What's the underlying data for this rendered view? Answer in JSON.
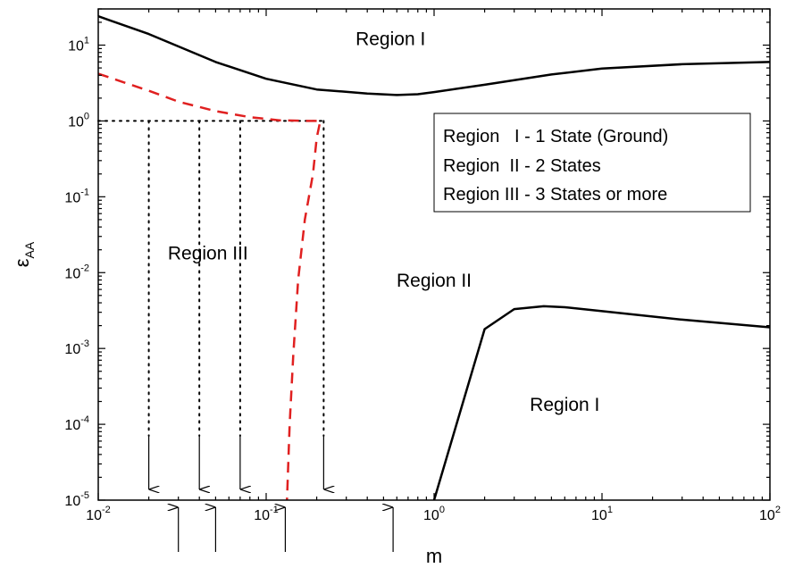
{
  "chart_data": {
    "type": "line",
    "x_scale": "log",
    "y_scale": "log",
    "xlim": [
      0.01,
      100
    ],
    "ylim": [
      1e-05,
      30
    ],
    "grid": false,
    "xlabel": "m",
    "ylabel": {
      "symbol": "ε",
      "subscript": "AA"
    },
    "x_ticks": [
      {
        "value": 0.01,
        "base": "10",
        "exp": "-2"
      },
      {
        "value": 0.1,
        "base": "10",
        "exp": "-1"
      },
      {
        "value": 1,
        "base": "10",
        "exp": "0"
      },
      {
        "value": 10,
        "base": "10",
        "exp": "1"
      },
      {
        "value": 100,
        "base": "10",
        "exp": "2"
      }
    ],
    "y_ticks": [
      {
        "value": 1e-05,
        "base": "10",
        "exp": "-5"
      },
      {
        "value": 0.0001,
        "base": "10",
        "exp": "-4"
      },
      {
        "value": 0.001,
        "base": "10",
        "exp": "-3"
      },
      {
        "value": 0.01,
        "base": "10",
        "exp": "-2"
      },
      {
        "value": 0.1,
        "base": "10",
        "exp": "-1"
      },
      {
        "value": 1,
        "base": "10",
        "exp": "0"
      },
      {
        "value": 10,
        "base": "10",
        "exp": "1"
      }
    ],
    "series": [
      {
        "style": "solid",
        "color": "#000000",
        "x": [
          0.01,
          0.02,
          0.05,
          0.1,
          0.2,
          0.4,
          0.6,
          0.8,
          1,
          2,
          5,
          10,
          30,
          100
        ],
        "y": [
          24,
          14,
          6,
          3.6,
          2.6,
          2.3,
          2.2,
          2.25,
          2.4,
          3.0,
          4.1,
          4.9,
          5.6,
          6.0
        ]
      },
      {
        "style": "solid",
        "color": "#000000",
        "x": [
          1,
          2,
          3,
          4.5,
          6,
          10,
          30,
          100
        ],
        "y": [
          1e-05,
          0.0018,
          0.0033,
          0.0036,
          0.0035,
          0.0031,
          0.0024,
          0.0019
        ]
      },
      {
        "style": "dashed",
        "color": "#e02020",
        "x": [
          0.01,
          0.015,
          0.02,
          0.03,
          0.05,
          0.08,
          0.12,
          0.18,
          0.21,
          0.2,
          0.19,
          0.17,
          0.155,
          0.145,
          0.138,
          0.133
        ],
        "y": [
          4.2,
          3.1,
          2.5,
          1.8,
          1.35,
          1.12,
          1.02,
          1.0,
          1.0,
          0.6,
          0.2,
          0.05,
          0.008,
          0.0008,
          0.0001,
          1e-05
        ]
      }
    ],
    "reference_lines": {
      "horizontal_dotted": {
        "y": 1,
        "x_from": 0.01,
        "x_to": 0.22
      },
      "vertical_dotted_with_down_arrows_x": [
        0.02,
        0.04,
        0.07,
        0.22
      ],
      "up_arrows_below_axis_x": [
        0.03,
        0.05,
        0.13,
        0.57
      ]
    },
    "region_labels": [
      {
        "text": "Region I",
        "x": 0.55,
        "y": 10
      },
      {
        "text": "Region III",
        "x": 0.045,
        "y": 0.015
      },
      {
        "text": "Region II",
        "x": 1.0,
        "y": 0.0065
      },
      {
        "text": "Region I",
        "x": 6.0,
        "y": 0.00015
      }
    ],
    "legend": {
      "placement": "top-right",
      "entries": [
        "Region   I - 1 State (Ground)",
        "Region  II - 2 States",
        "Region III - 3 States or more"
      ]
    }
  }
}
